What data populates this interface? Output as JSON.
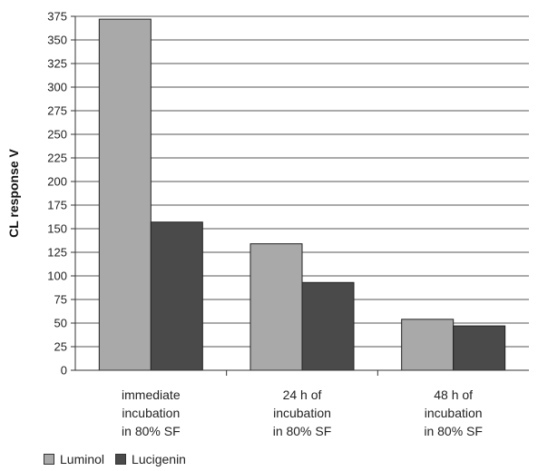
{
  "chart_data": {
    "type": "bar",
    "ylabel": "CL response V",
    "xlabel": "",
    "ylim": [
      0,
      375
    ],
    "yticks": [
      0,
      25,
      50,
      75,
      100,
      125,
      150,
      175,
      200,
      225,
      250,
      275,
      300,
      325,
      350,
      375
    ],
    "grid": true,
    "legend_position": "bottom-left",
    "categories": [
      [
        "immediate",
        "incubation",
        "in 80% SF"
      ],
      [
        "24 h of",
        "incubation",
        "in 80% SF"
      ],
      [
        "48 h of",
        "incubation",
        "in 80% SF"
      ]
    ],
    "series": [
      {
        "name": "Luminol",
        "color": "#a9a9a9",
        "values": [
          372,
          134,
          54
        ]
      },
      {
        "name": "Lucigenin",
        "color": "#4a4a4a",
        "values": [
          157,
          93,
          47
        ]
      }
    ]
  }
}
